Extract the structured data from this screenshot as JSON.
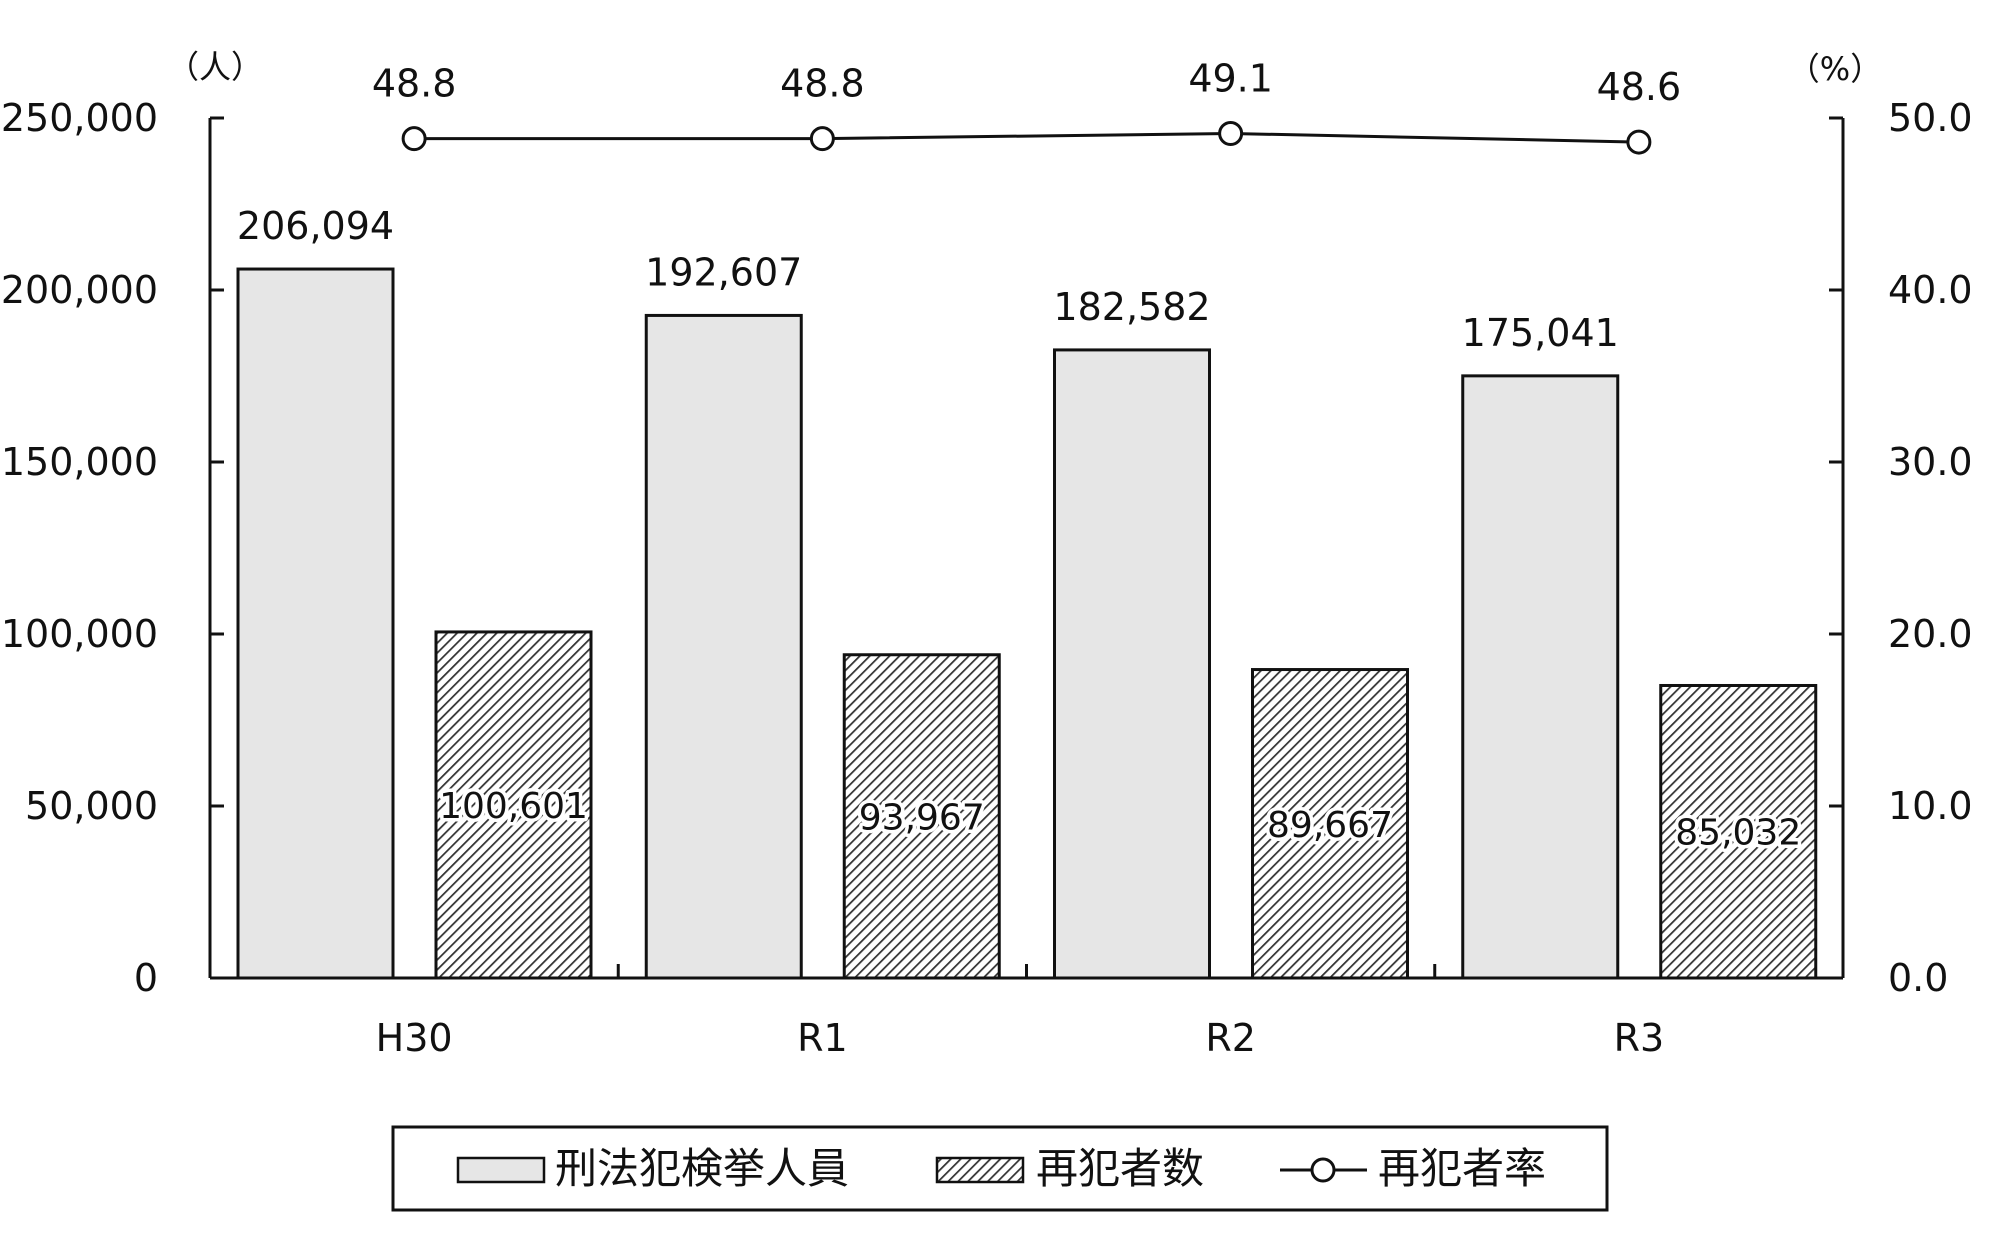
{
  "chart_data": {
    "type": "bar",
    "title": "",
    "categories": [
      "H30",
      "R1",
      "R2",
      "R3"
    ],
    "series": [
      {
        "name": "刑法犯検挙人員",
        "type": "bar",
        "axis": "left",
        "values": [
          206094,
          192607,
          182582,
          175041
        ],
        "value_labels": [
          "206,094",
          "192,607",
          "182,582",
          "175,041"
        ],
        "fill": "#e6e6e6",
        "pattern": "solid"
      },
      {
        "name": "再犯者数",
        "type": "bar",
        "axis": "left",
        "values": [
          100601,
          93967,
          89667,
          85032
        ],
        "value_labels": [
          "100,601",
          "93,967",
          "89,667",
          "85,032"
        ],
        "fill": "#bbbbbb",
        "pattern": "diagonal-hatch"
      },
      {
        "name": "再犯者率",
        "type": "line",
        "axis": "right",
        "values": [
          48.8,
          48.8,
          49.1,
          48.6
        ],
        "value_labels": [
          "48.8",
          "48.8",
          "49.1",
          "48.6"
        ],
        "marker": "open-circle"
      }
    ],
    "y_left": {
      "unit": "（人）",
      "min": 0,
      "max": 250000,
      "ticks": [
        0,
        50000,
        100000,
        150000,
        200000,
        250000
      ],
      "tick_labels": [
        "0",
        "50,000",
        "100,000",
        "150,000",
        "200,000",
        "250,000"
      ]
    },
    "y_right": {
      "unit": "（%）",
      "min": 0,
      "max": 50,
      "ticks": [
        0,
        10,
        20,
        30,
        40,
        50
      ],
      "tick_labels": [
        "0.0",
        "10.0",
        "20.0",
        "30.0",
        "40.0",
        "50.0"
      ]
    },
    "grid": false,
    "legend": {
      "position": "bottom-center",
      "entries": [
        "刑法犯検挙人員",
        "再犯者数",
        "再犯者率"
      ]
    },
    "colors": {
      "axis": "#111111",
      "bar_solid": "#e6e6e6",
      "hatch_bg": "#ffffff",
      "hatch_line": "#333333"
    }
  }
}
